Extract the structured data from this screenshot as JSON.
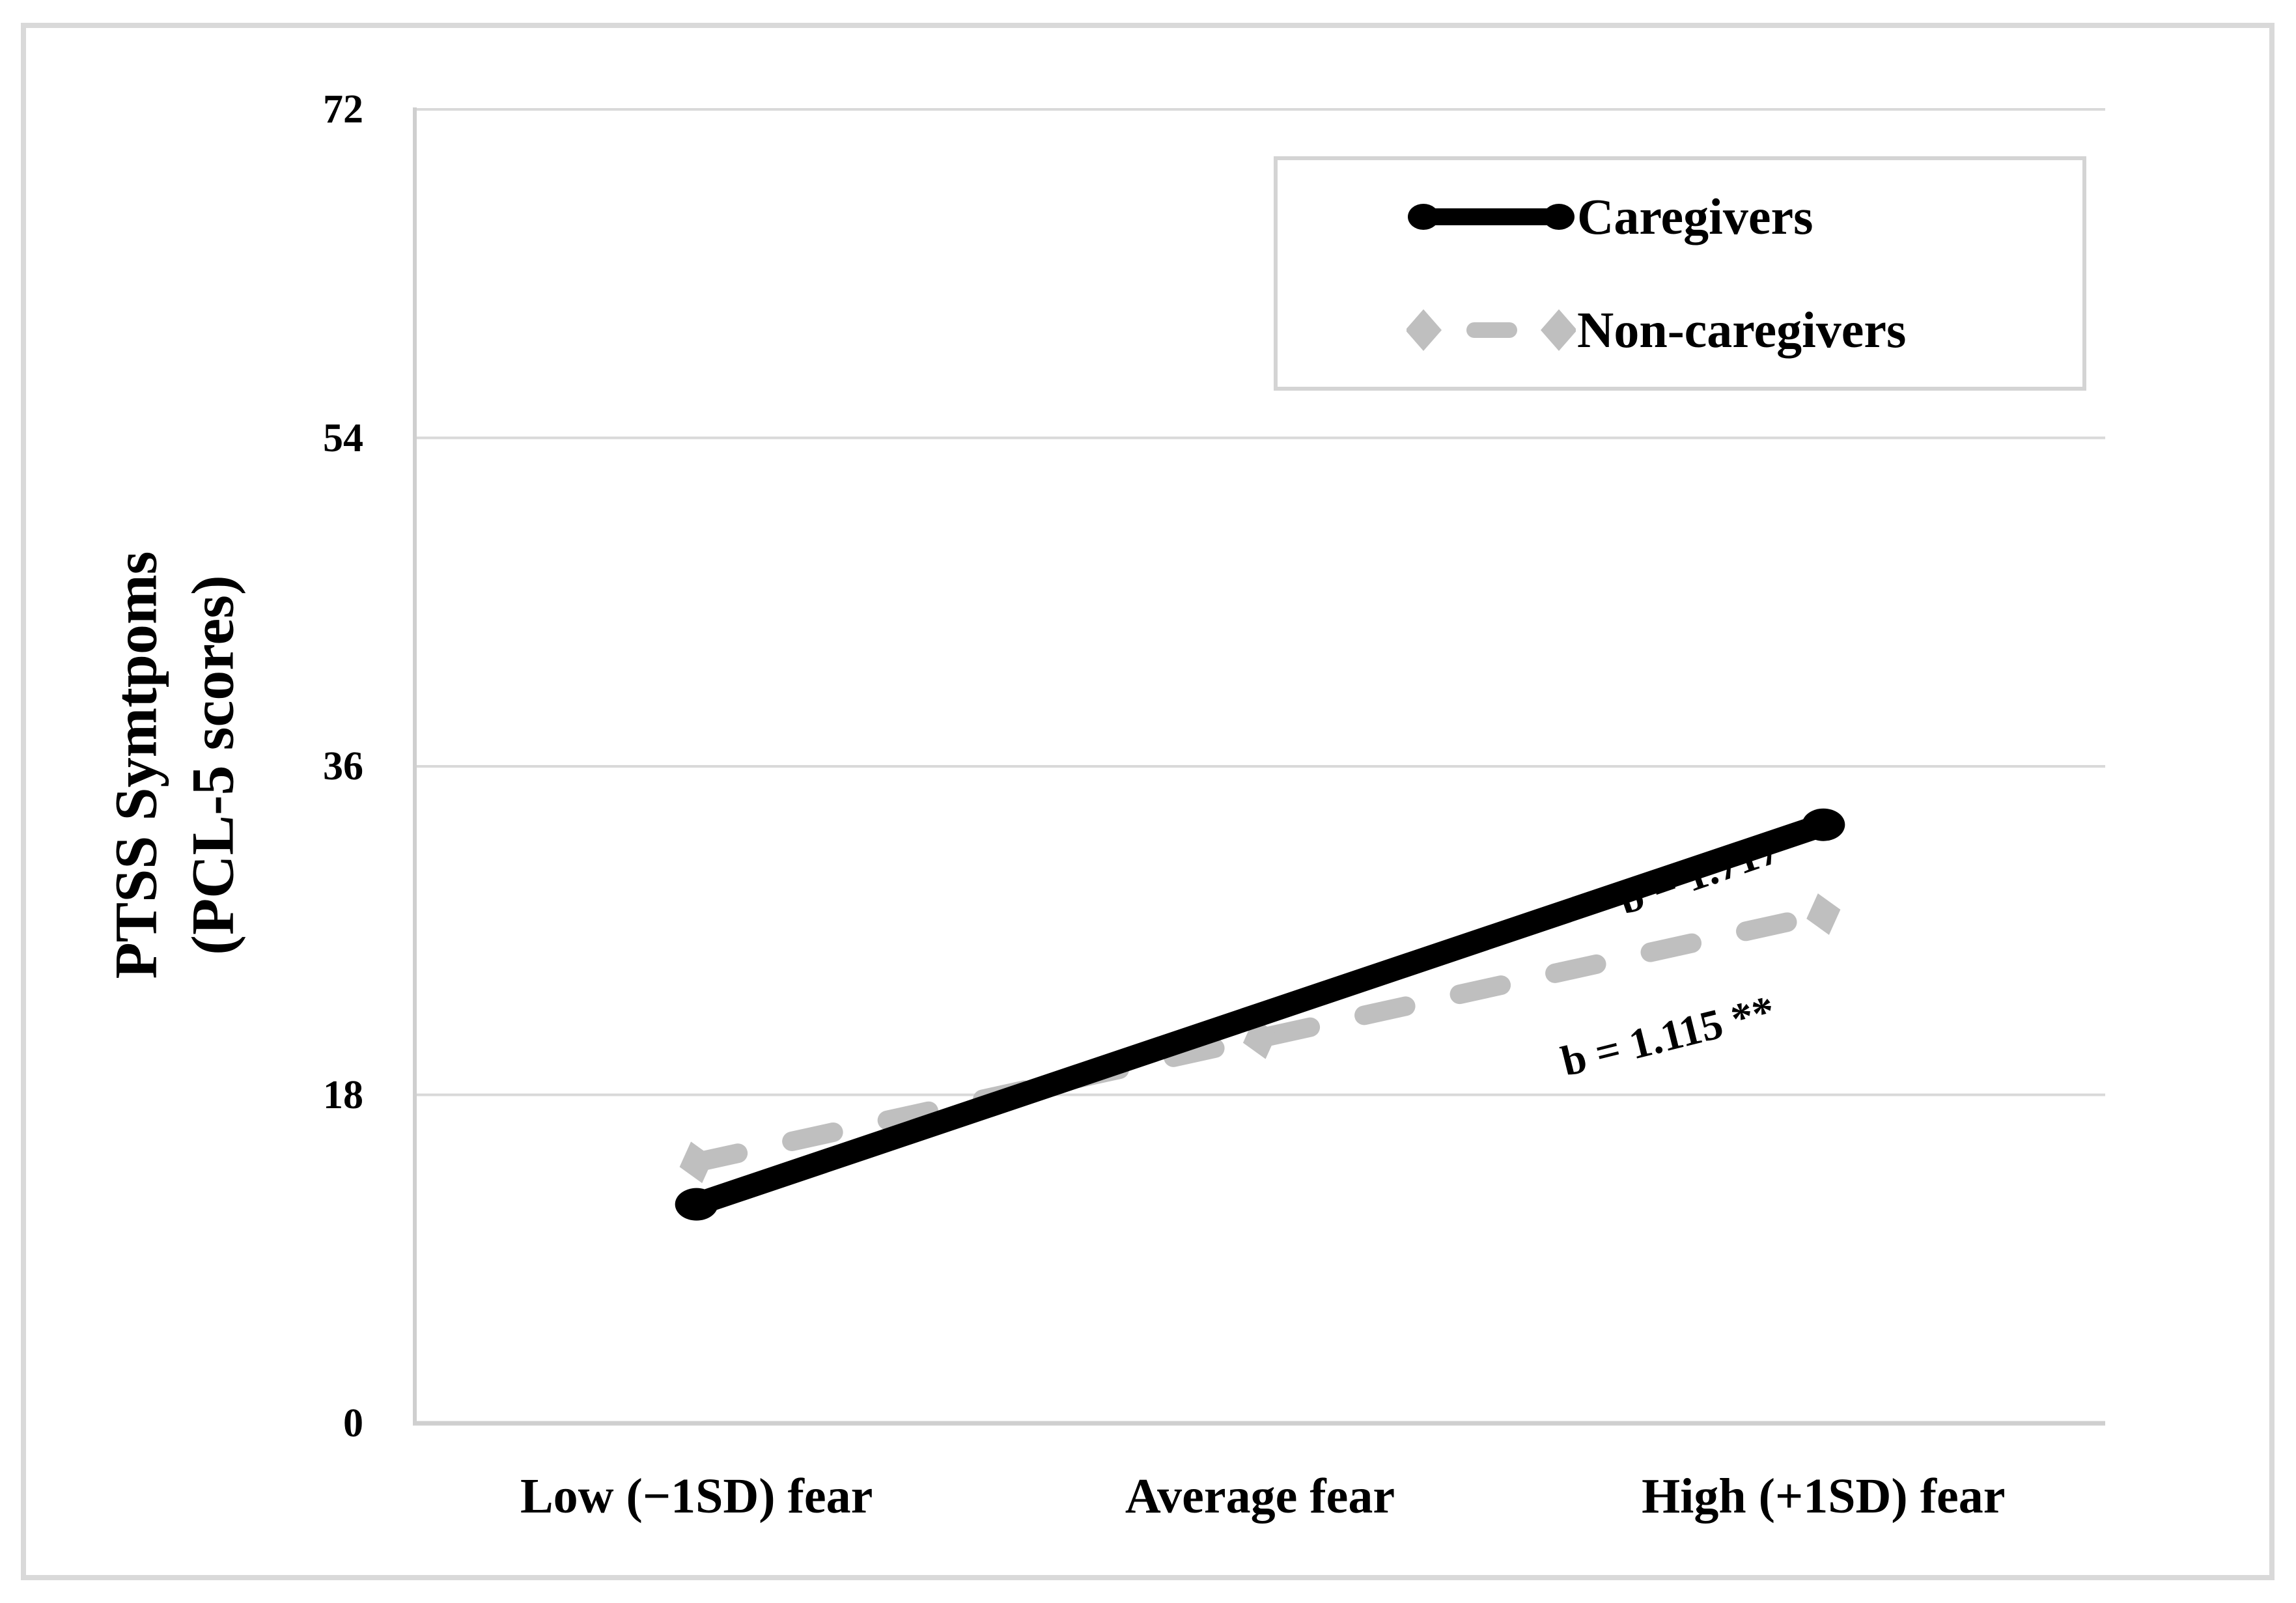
{
  "chart_data": {
    "type": "line",
    "categories": [
      "Low (−1SD) fear",
      "Average fear",
      "High (+1SD) fear"
    ],
    "series": [
      {
        "name": "Caregivers",
        "values": [
          12,
          22.4,
          32.8
        ],
        "color": "#000000",
        "line_style": "solid",
        "marker": "circle",
        "annotation": "b = 1.717 **"
      },
      {
        "name": "Non-caregivers",
        "values": [
          14.3,
          21.1,
          27.9
        ],
        "color": "#bfbfbf",
        "line_style": "dashed",
        "marker": "diamond",
        "annotation": "b = 1.115 **"
      }
    ],
    "ylabel": "PTSS Symtpoms (PCL-5 scores)",
    "ylabel_lines": [
      "PTSS Symtpoms",
      "(PCL-5 scores)"
    ],
    "yticks": [
      72,
      54,
      36,
      18,
      0
    ],
    "ylim": [
      0,
      72
    ],
    "grid": "horizontal",
    "legend_position": "top-right"
  },
  "legend": {
    "items": [
      {
        "label": "Caregivers"
      },
      {
        "label": "Non-caregivers"
      }
    ]
  },
  "annotations": {
    "caregivers_b": "b = 1.717 **",
    "noncaregivers_b": "b = 1.115 **"
  }
}
